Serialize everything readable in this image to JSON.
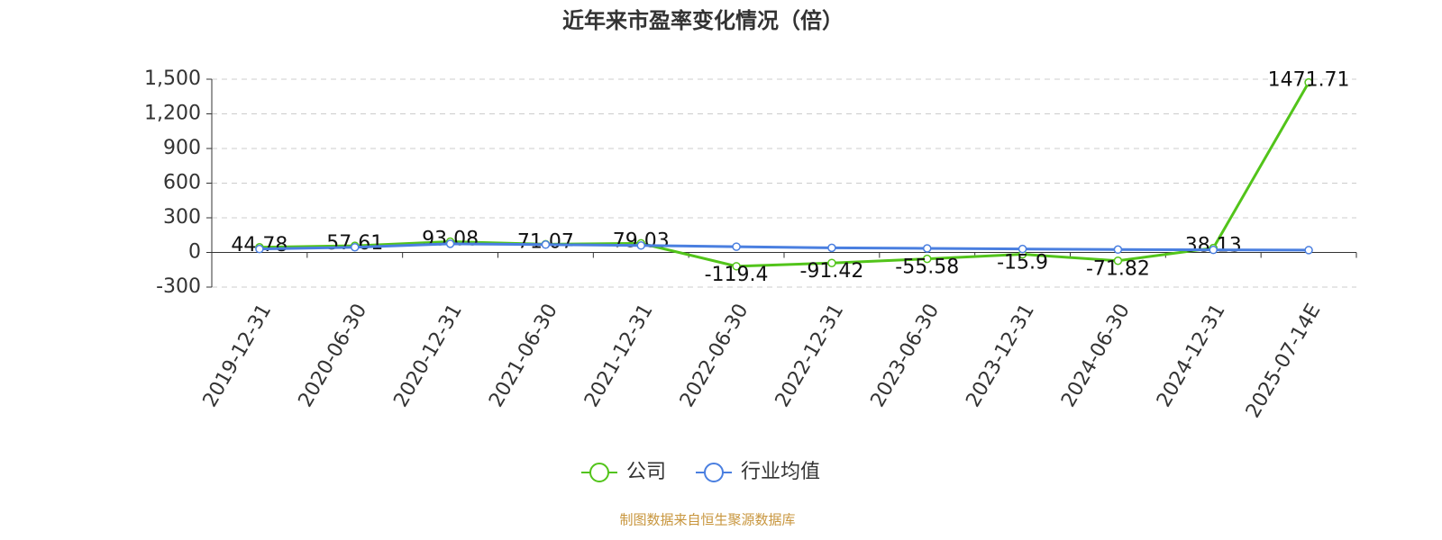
{
  "chart_data": {
    "type": "line",
    "title": "近年来市盈率变化情况（倍）",
    "categories": [
      "2019-12-31",
      "2020-06-30",
      "2020-12-31",
      "2021-06-30",
      "2021-12-31",
      "2022-06-30",
      "2022-12-31",
      "2023-06-30",
      "2023-12-31",
      "2024-06-30",
      "2024-12-31",
      "2025-07-14E"
    ],
    "series": [
      {
        "name": "公司",
        "color": "#52c41a",
        "values": [
          44.78,
          57.61,
          93.08,
          71.07,
          79.03,
          -119.4,
          -91.42,
          -55.58,
          -15.9,
          -71.82,
          38.13,
          1471.71
        ]
      },
      {
        "name": "行业均值",
        "color": "#4a7fe0",
        "values": [
          30,
          45,
          75,
          68,
          60,
          50,
          40,
          35,
          30,
          25,
          22,
          20
        ]
      }
    ],
    "ylim": [
      -300,
      1500
    ],
    "yticks": [
      -300,
      0,
      300,
      600,
      900,
      {
        "value": 1200,
        "label": "1,200"
      },
      {
        "value": 1500,
        "label": "1,500"
      }
    ],
    "grid": true,
    "source": "制图数据来自恒生聚源数据库"
  }
}
